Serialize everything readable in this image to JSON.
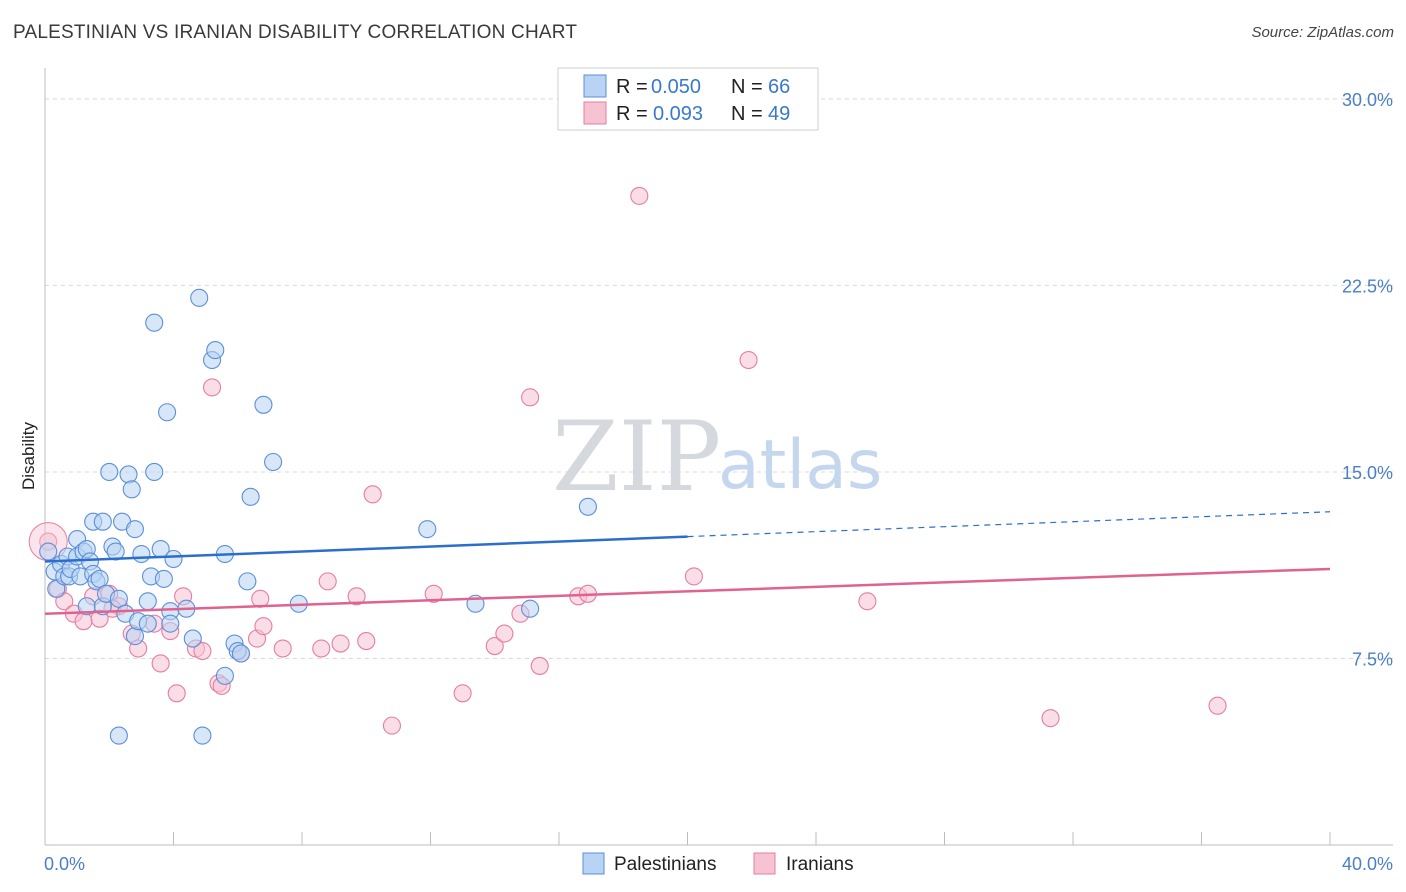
{
  "title": "PALESTINIAN VS IRANIAN DISABILITY CORRELATION CHART",
  "source": "Source: ZipAtlas.com",
  "watermark": {
    "part1": "ZIP",
    "part2": "atlas"
  },
  "colors": {
    "blue": "#5b8fd9",
    "blue_fill": "#b8d3f3",
    "blue_line": "#2a6fcc",
    "pink": "#e77da0",
    "pink_fill": "#f6c3d3",
    "pink_line": "#e0628f",
    "grid": "#d9d9d9",
    "axis_label": "#4a7fc8"
  },
  "legend": {
    "items": [
      {
        "r_label": "R = ",
        "r_value": "0.050",
        "n_label": "N = ",
        "n_value": "66"
      },
      {
        "r_label": "R = ",
        "r_value": "0.093",
        "n_label": "N = ",
        "n_value": "49"
      }
    ]
  },
  "bottom_legend": {
    "series1": "Palestinians",
    "series2": "Iranians"
  },
  "chart_data": {
    "type": "scatter",
    "title": "PALESTINIAN VS IRANIAN DISABILITY CORRELATION CHART",
    "xlabel": "",
    "ylabel": "Disability",
    "xlim": [
      0,
      40
    ],
    "ylim": [
      0,
      30.8
    ],
    "x_tick_labels": [
      "0.0%",
      "40.0%"
    ],
    "y_ticks": [
      7.5,
      15.0,
      22.5,
      30.0
    ],
    "y_tick_labels": [
      "7.5%",
      "15.0%",
      "22.5%",
      "30.0%"
    ],
    "series": [
      {
        "name": "Palestinians",
        "r": 0.05,
        "n": 66,
        "trend": {
          "x0": 0,
          "y0": 11.4,
          "x1": 20,
          "y1": 12.4,
          "dashed_to_x": 40,
          "dashed_to_y": 13.4
        },
        "points": [
          [
            0.1,
            11.8
          ],
          [
            0.3,
            11.0
          ],
          [
            0.35,
            10.3
          ],
          [
            0.5,
            11.3
          ],
          [
            0.6,
            10.8
          ],
          [
            0.7,
            11.6
          ],
          [
            0.75,
            10.8
          ],
          [
            0.8,
            11.1
          ],
          [
            1.0,
            11.6
          ],
          [
            1.0,
            12.3
          ],
          [
            1.1,
            10.8
          ],
          [
            1.2,
            11.8
          ],
          [
            1.3,
            11.9
          ],
          [
            1.3,
            9.6
          ],
          [
            1.4,
            11.4
          ],
          [
            1.5,
            10.9
          ],
          [
            1.5,
            13.0
          ],
          [
            1.6,
            10.6
          ],
          [
            1.7,
            10.7
          ],
          [
            1.8,
            9.6
          ],
          [
            1.8,
            13.0
          ],
          [
            1.9,
            10.1
          ],
          [
            2.0,
            15.0
          ],
          [
            2.1,
            12.0
          ],
          [
            2.2,
            11.8
          ],
          [
            2.3,
            9.9
          ],
          [
            2.4,
            13.0
          ],
          [
            2.5,
            9.3
          ],
          [
            2.6,
            14.9
          ],
          [
            2.7,
            14.3
          ],
          [
            2.8,
            12.7
          ],
          [
            2.8,
            8.4
          ],
          [
            2.9,
            9.0
          ],
          [
            3.0,
            11.7
          ],
          [
            3.2,
            9.8
          ],
          [
            3.3,
            10.8
          ],
          [
            3.4,
            21.0
          ],
          [
            3.4,
            15.0
          ],
          [
            3.6,
            11.9
          ],
          [
            3.7,
            10.7
          ],
          [
            3.8,
            17.4
          ],
          [
            3.9,
            9.4
          ],
          [
            3.9,
            8.9
          ],
          [
            4.0,
            11.5
          ],
          [
            4.4,
            9.5
          ],
          [
            4.6,
            8.3
          ],
          [
            4.8,
            22.0
          ],
          [
            4.9,
            4.4
          ],
          [
            5.2,
            19.5
          ],
          [
            5.3,
            19.9
          ],
          [
            5.6,
            11.7
          ],
          [
            5.6,
            6.8
          ],
          [
            5.9,
            8.1
          ],
          [
            6.0,
            7.8
          ],
          [
            6.1,
            7.7
          ],
          [
            6.3,
            10.6
          ],
          [
            6.4,
            14.0
          ],
          [
            6.8,
            17.7
          ],
          [
            7.1,
            15.4
          ],
          [
            7.9,
            9.7
          ],
          [
            11.9,
            12.7
          ],
          [
            13.4,
            9.7
          ],
          [
            15.1,
            9.5
          ],
          [
            16.9,
            13.6
          ],
          [
            3.2,
            8.9
          ],
          [
            2.3,
            4.4
          ]
        ]
      },
      {
        "name": "Iranians",
        "r": 0.093,
        "n": 49,
        "trend": {
          "x0": 0,
          "y0": 9.3,
          "x1": 40,
          "y1": 11.1
        },
        "points": [
          [
            0.1,
            12.2
          ],
          [
            0.4,
            10.3
          ],
          [
            0.6,
            9.8
          ],
          [
            0.9,
            9.3
          ],
          [
            1.2,
            9.0
          ],
          [
            1.5,
            10.0
          ],
          [
            1.7,
            9.1
          ],
          [
            2.0,
            10.1
          ],
          [
            2.3,
            9.6
          ],
          [
            2.7,
            8.5
          ],
          [
            2.9,
            7.9
          ],
          [
            3.4,
            8.9
          ],
          [
            3.6,
            7.3
          ],
          [
            3.9,
            8.6
          ],
          [
            4.1,
            6.1
          ],
          [
            4.3,
            10.0
          ],
          [
            4.7,
            7.9
          ],
          [
            4.9,
            7.8
          ],
          [
            5.2,
            18.4
          ],
          [
            5.4,
            6.5
          ],
          [
            5.5,
            6.4
          ],
          [
            6.1,
            7.7
          ],
          [
            6.6,
            8.3
          ],
          [
            6.7,
            9.9
          ],
          [
            6.8,
            8.8
          ],
          [
            7.4,
            7.9
          ],
          [
            8.6,
            7.9
          ],
          [
            8.8,
            10.6
          ],
          [
            9.2,
            8.1
          ],
          [
            9.7,
            10.0
          ],
          [
            10.0,
            8.2
          ],
          [
            10.2,
            14.1
          ],
          [
            10.8,
            4.8
          ],
          [
            12.1,
            10.1
          ],
          [
            13.0,
            6.1
          ],
          [
            14.0,
            8.0
          ],
          [
            14.3,
            8.5
          ],
          [
            14.8,
            9.3
          ],
          [
            15.1,
            18.0
          ],
          [
            15.4,
            7.2
          ],
          [
            16.6,
            10.0
          ],
          [
            16.9,
            10.1
          ],
          [
            18.5,
            26.1
          ],
          [
            20.2,
            10.8
          ],
          [
            21.9,
            19.5
          ],
          [
            25.6,
            9.8
          ],
          [
            31.3,
            5.1
          ],
          [
            36.5,
            5.6
          ],
          [
            2.1,
            9.5
          ]
        ]
      }
    ]
  }
}
